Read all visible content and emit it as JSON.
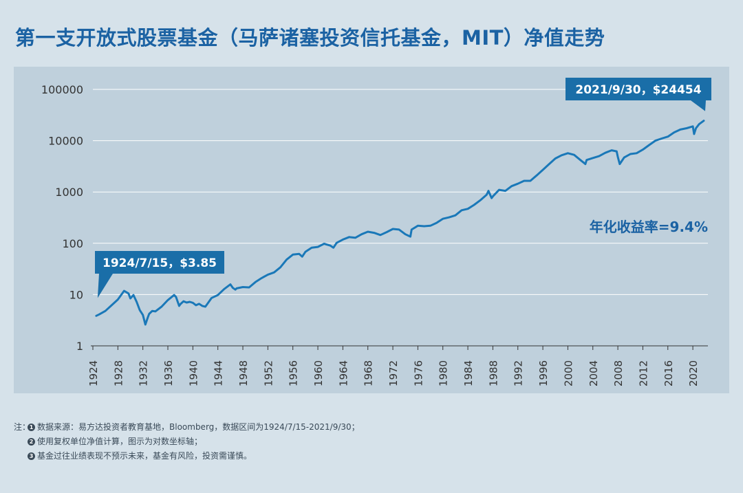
{
  "title": "第一支开放式股票基金（马萨诸塞投资信托基金，MIT）净值走势",
  "colors": {
    "background": "#d6e2ea",
    "panel": "#bfd0dc",
    "line": "#1a78b8",
    "accent": "#1b62a3",
    "callout": "#1a6ea8",
    "gridline": "#ffffff"
  },
  "chart_data": {
    "type": "line",
    "title": "第一支开放式股票基金（马萨诸塞投资信托基金，MIT）净值走势",
    "xlabel": "",
    "ylabel": "",
    "y_scale": "log",
    "ylim": [
      1,
      100000
    ],
    "xlim": [
      1924,
      2021.75
    ],
    "y_ticks": [
      "100000",
      "10000",
      "1000",
      "100",
      "10",
      "1"
    ],
    "x_ticks": [
      "1924",
      "1928",
      "1932",
      "1936",
      "1940",
      "1944",
      "1948",
      "1952",
      "1956",
      "1960",
      "1964",
      "1968",
      "1972",
      "1976",
      "1980",
      "1984",
      "1988",
      "1992",
      "1996",
      "2000",
      "2004",
      "2008",
      "2012",
      "2016",
      "2020"
    ],
    "grid": "horizontal",
    "series": [
      {
        "name": "",
        "x": [
          1924.54,
          1925,
          1926,
          1927,
          1928,
          1929,
          1929.7,
          1930,
          1930.5,
          1931,
          1931.5,
          1932,
          1932.4,
          1932.8,
          1933,
          1933.5,
          1934,
          1935,
          1936,
          1937,
          1937.3,
          1937.8,
          1938,
          1938.5,
          1939,
          1939.5,
          1940,
          1940.5,
          1941,
          1941.5,
          1942,
          1942.4,
          1943,
          1944,
          1945,
          1946,
          1946.4,
          1946.8,
          1947,
          1948,
          1949,
          1950,
          1951,
          1952,
          1953,
          1954,
          1955,
          1956,
          1957,
          1957.5,
          1958,
          1959,
          1960,
          1961,
          1962,
          1962.5,
          1963,
          1964,
          1965,
          1966,
          1967,
          1968,
          1969,
          1970,
          1971,
          1972,
          1973,
          1974,
          1974.8,
          1975,
          1976,
          1977,
          1978,
          1979,
          1980,
          1981,
          1982,
          1983,
          1984,
          1985,
          1986,
          1987,
          1987.3,
          1987.8,
          1988,
          1989,
          1990,
          1991,
          1992,
          1993,
          1994,
          1995,
          1996,
          1997,
          1998,
          1999,
          2000,
          2001,
          2002,
          2002.8,
          2003,
          2004,
          2005,
          2006,
          2007,
          2007.8,
          2008,
          2008.3,
          2009,
          2010,
          2011,
          2012,
          2013,
          2014,
          2015,
          2016,
          2017,
          2018,
          2019,
          2020,
          2020.2,
          2020.5,
          2021,
          2021.75
        ],
        "values": [
          3.85,
          4.1,
          4.8,
          6.2,
          8.0,
          11.8,
          10.5,
          8.4,
          9.8,
          7.2,
          5.0,
          4.0,
          2.6,
          3.6,
          4.2,
          4.8,
          4.7,
          5.8,
          7.8,
          9.8,
          9.0,
          6.0,
          6.5,
          7.4,
          7.0,
          7.2,
          6.9,
          6.2,
          6.6,
          6.0,
          5.8,
          6.8,
          8.6,
          9.8,
          12.8,
          15.8,
          13.5,
          12.5,
          13.2,
          14.0,
          13.8,
          17.5,
          21.0,
          24.5,
          27.0,
          34.0,
          48.0,
          60.0,
          62.0,
          55.0,
          68.0,
          82.0,
          85.0,
          98.0,
          90.0,
          82.0,
          102.0,
          118.0,
          132.0,
          128.0,
          150.0,
          168.0,
          160.0,
          145.0,
          165.0,
          190.0,
          185.0,
          150.0,
          135.0,
          185.0,
          220.0,
          215.0,
          220.0,
          250.0,
          300.0,
          320.0,
          350.0,
          440.0,
          470.0,
          560.0,
          690.0,
          880.0,
          1050.0,
          760.0,
          820.0,
          1100.0,
          1050.0,
          1300.0,
          1450.0,
          1650.0,
          1650.0,
          2100.0,
          2700.0,
          3500.0,
          4500.0,
          5200.0,
          5700.0,
          5300.0,
          4200.0,
          3500.0,
          4200.0,
          4600.0,
          5000.0,
          5800.0,
          6500.0,
          6200.0,
          4800.0,
          3500.0,
          4700.0,
          5500.0,
          5700.0,
          6700.0,
          8200.0,
          10000.0,
          11000.0,
          12000.0,
          14500.0,
          16500.0,
          17500.0,
          19000.0,
          13500.0,
          17500.0,
          21000.0,
          24454.0
        ]
      }
    ],
    "annotations": [
      {
        "text": "1924/7/15，$3.85",
        "x": 1924.54,
        "y": 3.85
      },
      {
        "text": "2021/9/30，$24454",
        "x": 2021.75,
        "y": 24454
      },
      {
        "text": "年化收益率=9.4%"
      }
    ]
  },
  "notes": {
    "prefix": "注：",
    "items": [
      {
        "num": "1",
        "text": "数据来源：易方达投资者教育基地，Bloomberg，数据区间为1924/7/15-2021/9/30；"
      },
      {
        "num": "2",
        "text": "使用复权单位净值计算，图示为对数坐标轴；"
      },
      {
        "num": "3",
        "text": "基金过往业绩表现不预示未来，基金有风险，投资需谨慎。"
      }
    ]
  }
}
